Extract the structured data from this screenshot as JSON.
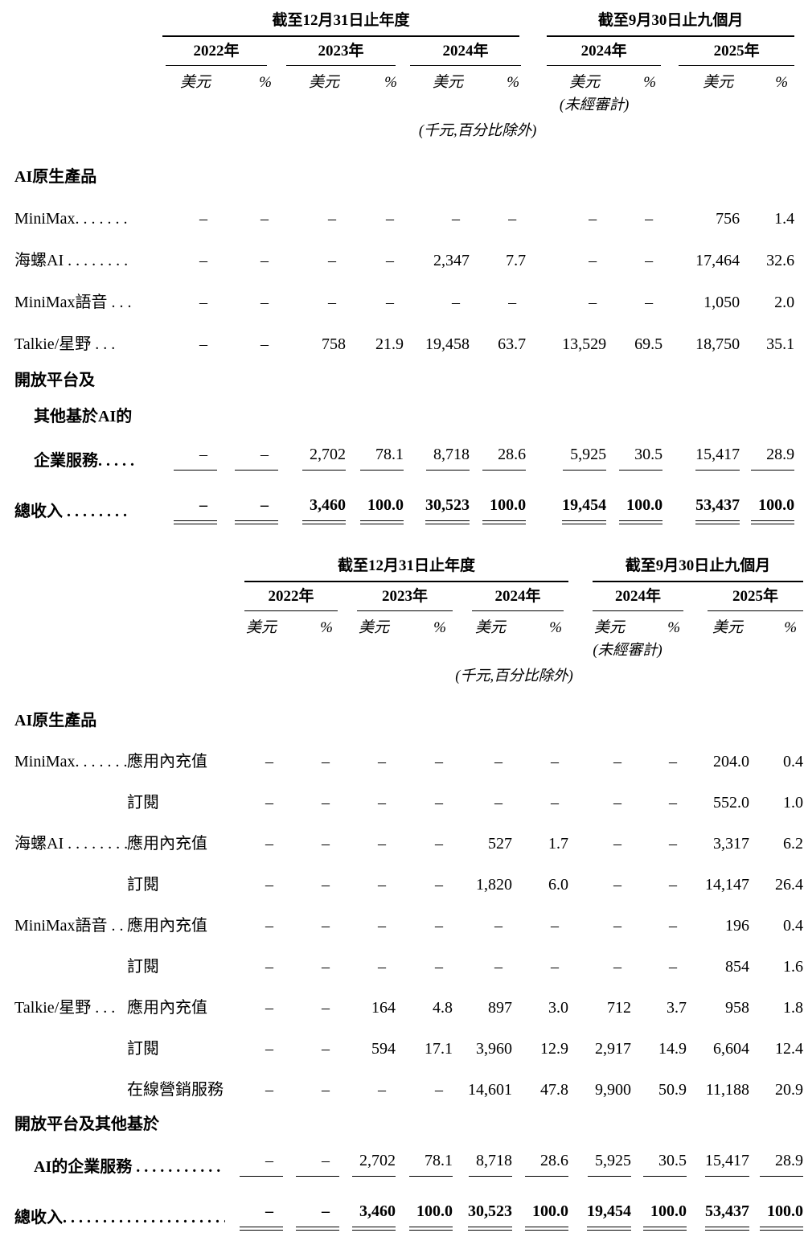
{
  "page": {
    "background": "#ffffff",
    "text_color": "#000000",
    "rule_color": "#000000"
  },
  "tables": [
    {
      "name": "revenue-by-product",
      "has_type_col": false,
      "head": {
        "annual_period": "截至12月31日止年度",
        "nine_month_period": "截至9月30日止九個月",
        "years": [
          "2022年",
          "2023年",
          "2024年",
          "2024年",
          "2025年"
        ],
        "currency_label": "美元",
        "percent_label": "%",
        "unaudited_note": "(未經審計)",
        "unit_note": "(千元,百分比除外)"
      },
      "rows": [
        {
          "style": "section",
          "label": "AI原生產品"
        },
        {
          "style": "data",
          "label": "MiniMax. . . . . . .",
          "values": [
            "–",
            "–",
            "–",
            "–",
            "–",
            "–",
            "–",
            "–",
            "756",
            "1.4"
          ]
        },
        {
          "style": "data",
          "label": "海螺AI . . . . . . . .",
          "values": [
            "–",
            "–",
            "–",
            "–",
            "2,347",
            "7.7",
            "–",
            "–",
            "17,464",
            "32.6"
          ]
        },
        {
          "style": "data",
          "label": "MiniMax語音 . . .",
          "values": [
            "–",
            "–",
            "–",
            "–",
            "–",
            "–",
            "–",
            "–",
            "1,050",
            "2.0"
          ]
        },
        {
          "style": "data",
          "label": "Talkie/星野 . . .",
          "values": [
            "–",
            "–",
            "758",
            "21.9",
            "19,458",
            "63.7",
            "13,529",
            "69.5",
            "18,750",
            "35.1"
          ]
        },
        {
          "style": "section-tight",
          "label": "開放平台及"
        },
        {
          "style": "section-tight",
          "indent": true,
          "label": "其他基於AI的"
        },
        {
          "style": "subtotal",
          "indent": true,
          "label": "企業服務. . . . .",
          "values": [
            "–",
            "–",
            "2,702",
            "78.1",
            "8,718",
            "28.6",
            "5,925",
            "30.5",
            "15,417",
            "28.9"
          ]
        },
        {
          "style": "total",
          "label": "總收入 . . . . . . . .",
          "values": [
            "–",
            "–",
            "3,460",
            "100.0",
            "30,523",
            "100.0",
            "19,454",
            "100.0",
            "53,437",
            "100.0"
          ]
        }
      ]
    },
    {
      "name": "revenue-by-product-and-monetization",
      "has_type_col": true,
      "head": {
        "annual_period": "截至12月31日止年度",
        "nine_month_period": "截至9月30日止九個月",
        "years": [
          "2022年",
          "2023年",
          "2024年",
          "2024年",
          "2025年"
        ],
        "currency_label": "美元",
        "percent_label": "%",
        "unaudited_note": "(未經審計)",
        "unit_note": "(千元,百分比除外)"
      },
      "rows": [
        {
          "style": "section",
          "label": "AI原生產品"
        },
        {
          "style": "data",
          "label": "MiniMax. . . . . . .",
          "sub": "應用內充值",
          "values": [
            "–",
            "–",
            "–",
            "–",
            "–",
            "–",
            "–",
            "–",
            "204.0",
            "0.4"
          ]
        },
        {
          "style": "data",
          "label": "",
          "sub": "訂閱",
          "values": [
            "–",
            "–",
            "–",
            "–",
            "–",
            "–",
            "–",
            "–",
            "552.0",
            "1.0"
          ]
        },
        {
          "style": "data",
          "label": "海螺AI . . . . . . . . .",
          "sub": "應用內充值",
          "values": [
            "–",
            "–",
            "–",
            "–",
            "527",
            "1.7",
            "–",
            "–",
            "3,317",
            "6.2"
          ]
        },
        {
          "style": "data",
          "label": "",
          "sub": "訂閱",
          "values": [
            "–",
            "–",
            "–",
            "–",
            "1,820",
            "6.0",
            "–",
            "–",
            "14,147",
            "26.4"
          ]
        },
        {
          "style": "data",
          "label": "MiniMax語音 . . .",
          "sub": "應用內充值",
          "values": [
            "–",
            "–",
            "–",
            "–",
            "–",
            "–",
            "–",
            "–",
            "196",
            "0.4"
          ]
        },
        {
          "style": "data",
          "label": "",
          "sub": "訂閱",
          "values": [
            "–",
            "–",
            "–",
            "–",
            "–",
            "–",
            "–",
            "–",
            "854",
            "1.6"
          ]
        },
        {
          "style": "data",
          "label": "Talkie/星野 . . .",
          "sub": "應用內充值",
          "values": [
            "–",
            "–",
            "164",
            "4.8",
            "897",
            "3.0",
            "712",
            "3.7",
            "958",
            "1.8"
          ]
        },
        {
          "style": "data",
          "label": "",
          "sub": "訂閱",
          "values": [
            "–",
            "–",
            "594",
            "17.1",
            "3,960",
            "12.9",
            "2,917",
            "14.9",
            "6,604",
            "12.4"
          ]
        },
        {
          "style": "data",
          "label": "",
          "sub": "在線營銷服務",
          "values": [
            "–",
            "–",
            "–",
            "–",
            "14,601",
            "47.8",
            "9,900",
            "50.9",
            "11,188",
            "20.9"
          ]
        },
        {
          "style": "section-tight",
          "label": "開放平台及其他基於"
        },
        {
          "style": "subtotal",
          "indent": true,
          "label": "AI的企業服務 . . . . . . . . . . . . . .",
          "values": [
            "–",
            "–",
            "2,702",
            "78.1",
            "8,718",
            "28.6",
            "5,925",
            "30.5",
            "15,417",
            "28.9"
          ]
        },
        {
          "style": "total",
          "label": "總收入. . . . . . . . . . . . . . . . . . . . . .",
          "values": [
            "–",
            "–",
            "3,460",
            "100.0",
            "30,523",
            "100.0",
            "19,454",
            "100.0",
            "53,437",
            "100.0"
          ]
        }
      ]
    }
  ]
}
